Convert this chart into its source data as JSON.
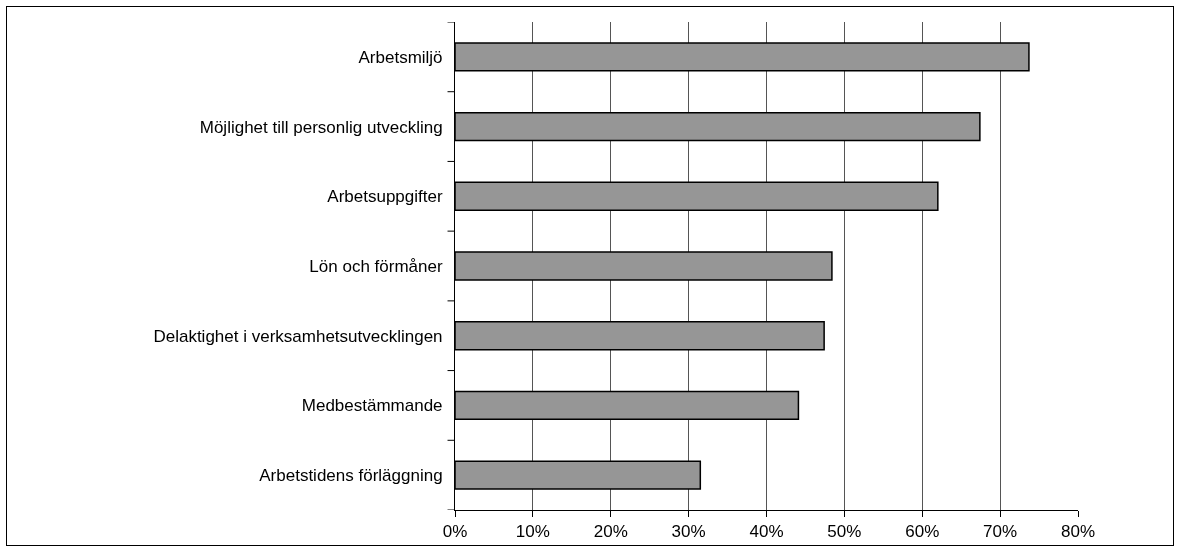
{
  "chart_data": {
    "type": "bar",
    "orientation": "horizontal",
    "categories": [
      "Arbetsmiljö",
      "Möjlighet till personlig utveckling",
      "Arbetsuppgifter",
      "Lön och förmåner",
      "Delaktighet i verksamhetsutvecklingen",
      "Medbestämmande",
      "Arbetstidens förläggning"
    ],
    "values": [
      73.7,
      67.4,
      62.0,
      48.4,
      47.4,
      44.1,
      31.5
    ],
    "color": "#969696",
    "xlim": [
      0,
      80
    ],
    "xticks": [
      {
        "value": 0,
        "label": "0%"
      },
      {
        "value": 10,
        "label": "10%"
      },
      {
        "value": 20,
        "label": "20%"
      },
      {
        "value": 30,
        "label": "30%"
      },
      {
        "value": 40,
        "label": "40%"
      },
      {
        "value": 50,
        "label": "50%"
      },
      {
        "value": 60,
        "label": "60%"
      },
      {
        "value": 70,
        "label": "70%"
      },
      {
        "value": 80,
        "label": "80%"
      }
    ],
    "grid": "x"
  }
}
